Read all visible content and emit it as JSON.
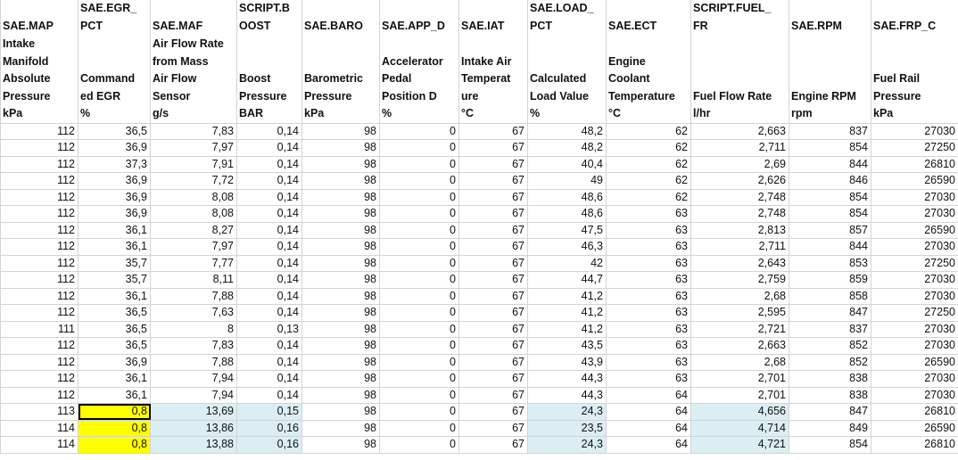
{
  "columns": [
    {
      "code": [
        "SAE.MAP"
      ],
      "description": [
        "Intake",
        "Manifold",
        "Absolute",
        "Pressure"
      ],
      "unit": "kPa"
    },
    {
      "code": [
        "SAE.EGR_",
        "PCT"
      ],
      "description": [
        "Command",
        "ed EGR"
      ],
      "unit": "%"
    },
    {
      "code": [
        "SAE.MAF"
      ],
      "description": [
        "Air Flow Rate",
        "from Mass",
        "Air Flow",
        "Sensor"
      ],
      "unit": "g/s"
    },
    {
      "code": [
        "SCRIPT.B",
        "OOST"
      ],
      "description": [
        "Boost",
        "Pressure"
      ],
      "unit": "BAR"
    },
    {
      "code": [
        "SAE.BARO"
      ],
      "description": [
        "Barometric",
        "Pressure"
      ],
      "unit": "kPa"
    },
    {
      "code": [
        "SAE.APP_D"
      ],
      "description": [
        "Accelerator",
        "Pedal",
        "Position D"
      ],
      "unit": "%"
    },
    {
      "code": [
        "SAE.IAT"
      ],
      "description": [
        "Intake Air",
        "Temperat",
        "ure"
      ],
      "unit": "°C"
    },
    {
      "code": [
        "SAE.LOAD_",
        "PCT"
      ],
      "description": [
        "Calculated",
        "Load Value"
      ],
      "unit": "%"
    },
    {
      "code": [
        "SAE.ECT"
      ],
      "description": [
        "Engine",
        "Coolant",
        "Temperature"
      ],
      "unit": "°C"
    },
    {
      "code": [
        "SCRIPT.FUEL_",
        "FR"
      ],
      "description": [
        "Fuel Flow Rate"
      ],
      "unit": "l/hr"
    },
    {
      "code": [
        "SAE.RPM"
      ],
      "description": [
        "Engine RPM"
      ],
      "unit": "rpm"
    },
    {
      "code": [
        "SAE.FRP_C"
      ],
      "description": [
        "Fuel Rail",
        "Pressure"
      ],
      "unit": "kPa"
    }
  ],
  "rows": [
    [
      "112",
      "36,5",
      "7,83",
      "0,14",
      "98",
      "0",
      "67",
      "48,2",
      "62",
      "2,663",
      "837",
      "27030"
    ],
    [
      "112",
      "36,9",
      "7,97",
      "0,14",
      "98",
      "0",
      "67",
      "48,2",
      "62",
      "2,711",
      "854",
      "27250"
    ],
    [
      "112",
      "37,3",
      "7,91",
      "0,14",
      "98",
      "0",
      "67",
      "40,4",
      "62",
      "2,69",
      "844",
      "26810"
    ],
    [
      "112",
      "36,9",
      "7,72",
      "0,14",
      "98",
      "0",
      "67",
      "49",
      "62",
      "2,626",
      "846",
      "26590"
    ],
    [
      "112",
      "36,9",
      "8,08",
      "0,14",
      "98",
      "0",
      "67",
      "48,6",
      "62",
      "2,748",
      "854",
      "27030"
    ],
    [
      "112",
      "36,9",
      "8,08",
      "0,14",
      "98",
      "0",
      "67",
      "48,6",
      "63",
      "2,748",
      "854",
      "27030"
    ],
    [
      "112",
      "36,1",
      "8,27",
      "0,14",
      "98",
      "0",
      "67",
      "47,5",
      "63",
      "2,813",
      "857",
      "26590"
    ],
    [
      "112",
      "36,1",
      "7,97",
      "0,14",
      "98",
      "0",
      "67",
      "46,3",
      "63",
      "2,711",
      "844",
      "27030"
    ],
    [
      "112",
      "35,7",
      "7,77",
      "0,14",
      "98",
      "0",
      "67",
      "42",
      "63",
      "2,643",
      "853",
      "27250"
    ],
    [
      "112",
      "35,7",
      "8,11",
      "0,14",
      "98",
      "0",
      "67",
      "44,7",
      "63",
      "2,759",
      "859",
      "27030"
    ],
    [
      "112",
      "36,1",
      "7,88",
      "0,14",
      "98",
      "0",
      "67",
      "41,2",
      "63",
      "2,68",
      "858",
      "27030"
    ],
    [
      "112",
      "36,5",
      "7,63",
      "0,14",
      "98",
      "0",
      "67",
      "41,2",
      "63",
      "2,595",
      "847",
      "27250"
    ],
    [
      "111",
      "36,5",
      "8",
      "0,13",
      "98",
      "0",
      "67",
      "41,2",
      "63",
      "2,721",
      "837",
      "27030"
    ],
    [
      "112",
      "36,5",
      "7,83",
      "0,14",
      "98",
      "0",
      "67",
      "43,5",
      "63",
      "2,663",
      "852",
      "27030"
    ],
    [
      "112",
      "36,9",
      "7,88",
      "0,14",
      "98",
      "0",
      "67",
      "43,9",
      "63",
      "2,68",
      "852",
      "26590"
    ],
    [
      "112",
      "36,1",
      "7,94",
      "0,14",
      "98",
      "0",
      "67",
      "44,3",
      "63",
      "2,701",
      "838",
      "27030"
    ],
    [
      "112",
      "36,1",
      "7,94",
      "0,14",
      "98",
      "0",
      "67",
      "44,3",
      "64",
      "2,701",
      "838",
      "27030"
    ],
    [
      "113",
      "0,8",
      "13,69",
      "0,15",
      "98",
      "0",
      "67",
      "24,3",
      "64",
      "4,656",
      "847",
      "26810"
    ],
    [
      "114",
      "0,8",
      "13,86",
      "0,16",
      "98",
      "0",
      "67",
      "23,5",
      "64",
      "4,714",
      "849",
      "26590"
    ],
    [
      "114",
      "0,8",
      "13,88",
      "0,16",
      "98",
      "0",
      "67",
      "24,3",
      "64",
      "4,721",
      "854",
      "26810"
    ]
  ]
}
